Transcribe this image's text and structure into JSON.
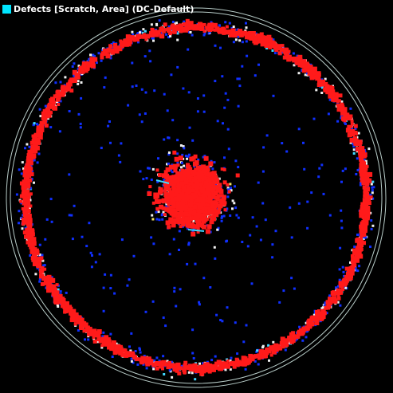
{
  "legend": {
    "label": "Defects [Scratch, Area] (DC-Default)",
    "swatch_color": "#00e5ff"
  },
  "map": {
    "background": "#000000",
    "outline_color": "#b8ccc8",
    "defect_colors": {
      "primary": "#ff1a1a",
      "secondary": "#1030ff",
      "tertiary": "#f0f0f0",
      "cyan": "#40d8ff",
      "yellow": "#f0e060"
    },
    "pattern": "center-cluster-and-edge-ring"
  }
}
